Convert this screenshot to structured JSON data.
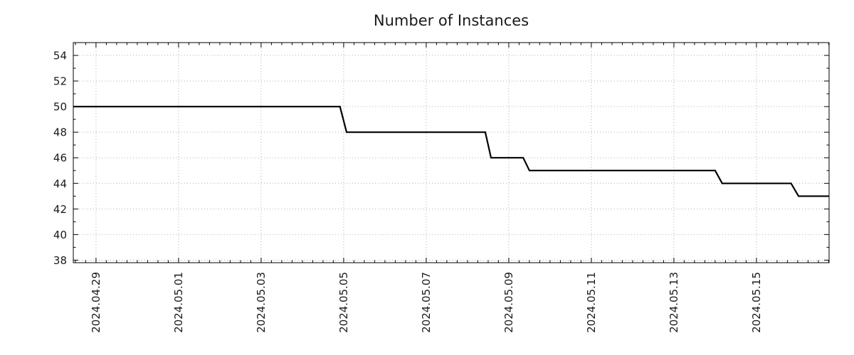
{
  "chart_data": {
    "type": "line",
    "title": "Number of Instances",
    "line_color": "#000000",
    "grid_color": "#b0b0b0",
    "axis_color": "#000000",
    "text_color": "#1a1a1a",
    "background": "#ffffff",
    "legend": "none",
    "grid": "dotted, at major ticks",
    "x_start_date": "2024-04-29",
    "x_unit": "days since 2024-04-29",
    "xlim": [
      -0.55,
      17.76
    ],
    "ylim": [
      37.8,
      55.0
    ],
    "x_major_ticks": [
      0,
      2,
      4,
      6,
      8,
      10,
      12,
      14,
      16
    ],
    "x_tick_labels": [
      "2024.04.29",
      "2024.05.01",
      "2024.05.03",
      "2024.05.05",
      "2024.05.07",
      "2024.05.09",
      "2024.05.11",
      "2024.05.13",
      "2024.05.15"
    ],
    "x_minor_step": 0.25,
    "y_major_ticks": [
      38,
      40,
      42,
      44,
      46,
      48,
      50,
      52,
      54
    ],
    "y_tick_labels": [
      "38",
      "40",
      "42",
      "44",
      "46",
      "48",
      "50",
      "52",
      "54"
    ],
    "y_minor_step": 1,
    "series": [
      {
        "name": "instances",
        "style": "step",
        "points": [
          {
            "day": -0.55,
            "value": 50
          },
          {
            "day": 5.91,
            "value": 50
          },
          {
            "day": 6.07,
            "value": 48
          },
          {
            "day": 9.43,
            "value": 48
          },
          {
            "day": 9.57,
            "value": 46
          },
          {
            "day": 10.35,
            "value": 46
          },
          {
            "day": 10.5,
            "value": 45
          },
          {
            "day": 15.0,
            "value": 45
          },
          {
            "day": 15.17,
            "value": 44
          },
          {
            "day": 16.84,
            "value": 44
          },
          {
            "day": 17.02,
            "value": 43
          },
          {
            "day": 17.76,
            "value": 43
          }
        ]
      }
    ],
    "plateaus_readable": [
      {
        "from": "2024-04-29 (left edge)",
        "to": "2024-05-04 (end of day)",
        "value": 50
      },
      {
        "from": "2024-05-05",
        "to": "2024-05-08 (mid-day)",
        "value": 48
      },
      {
        "from": "2024-05-08 (mid-day)",
        "to": "2024-05-09 (mid-day)",
        "value": 46
      },
      {
        "from": "2024-05-09 (mid-day)",
        "to": "2024-05-14 (start)",
        "value": 45
      },
      {
        "from": "2024-05-14",
        "to": "2024-05-15 (end of day)",
        "value": 44
      },
      {
        "from": "2024-05-16",
        "to": "2024-05-16 (right edge)",
        "value": 43
      }
    ]
  }
}
